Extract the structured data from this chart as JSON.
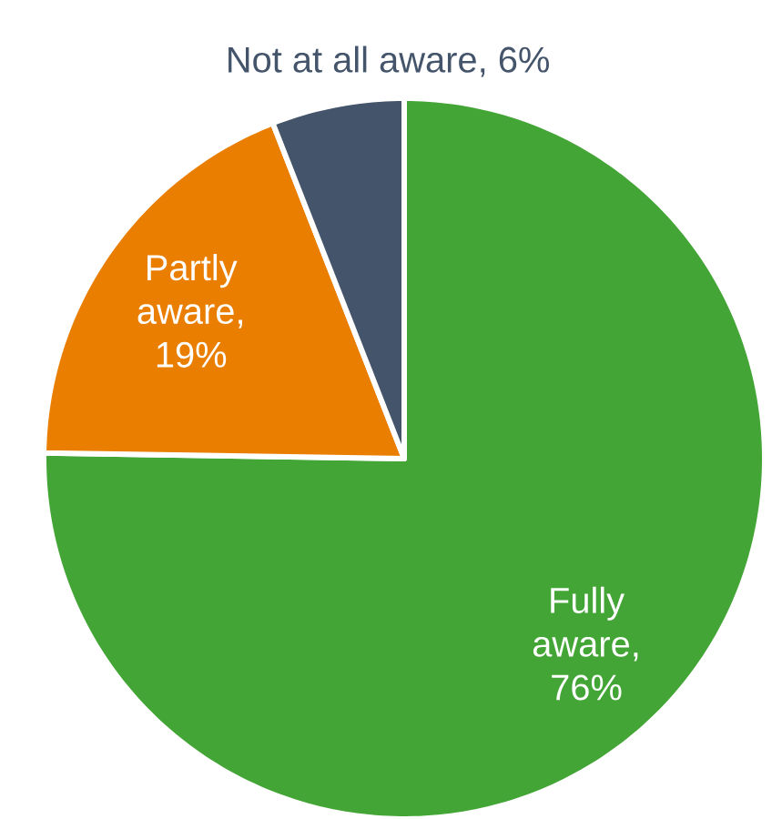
{
  "chart_data": {
    "type": "pie",
    "categories": [
      "Fully aware",
      "Partly aware",
      "Not at all aware"
    ],
    "values": [
      76,
      19,
      6
    ],
    "value_labels": [
      ", 76%",
      ", 19%",
      ", 6%"
    ],
    "colors": [
      "#43a535",
      "#e97e00",
      "#44546a"
    ]
  }
}
